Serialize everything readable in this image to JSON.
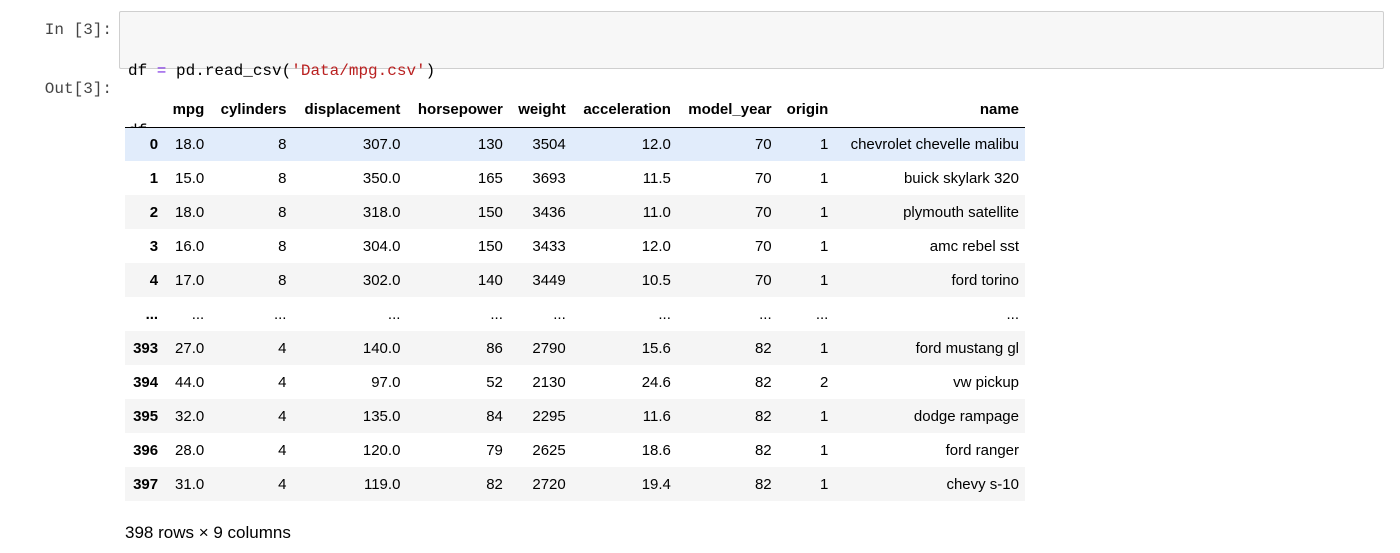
{
  "cell": {
    "in_prompt": "In [3]:",
    "out_prompt": "Out[3]:",
    "code_lines": [
      {
        "a": "df",
        "op": " = ",
        "b": "pd.read_csv(",
        "s": "'Data/mpg.csv'",
        "c": ")"
      },
      {
        "a": "df",
        "op": "",
        "b": "",
        "s": "",
        "c": ""
      }
    ]
  },
  "dataframe": {
    "columns": [
      "",
      "mpg",
      "cylinders",
      "displacement",
      "horsepower",
      "weight",
      "acceleration",
      "model_year",
      "origin",
      "name"
    ],
    "rows": [
      [
        "0",
        "18.0",
        "8",
        "307.0",
        "130",
        "3504",
        "12.0",
        "70",
        "1",
        "chevrolet chevelle malibu"
      ],
      [
        "1",
        "15.0",
        "8",
        "350.0",
        "165",
        "3693",
        "11.5",
        "70",
        "1",
        "buick skylark 320"
      ],
      [
        "2",
        "18.0",
        "8",
        "318.0",
        "150",
        "3436",
        "11.0",
        "70",
        "1",
        "plymouth satellite"
      ],
      [
        "3",
        "16.0",
        "8",
        "304.0",
        "150",
        "3433",
        "12.0",
        "70",
        "1",
        "amc rebel sst"
      ],
      [
        "4",
        "17.0",
        "8",
        "302.0",
        "140",
        "3449",
        "10.5",
        "70",
        "1",
        "ford torino"
      ],
      [
        "...",
        "...",
        "...",
        "...",
        "...",
        "...",
        "...",
        "...",
        "...",
        "..."
      ],
      [
        "393",
        "27.0",
        "4",
        "140.0",
        "86",
        "2790",
        "15.6",
        "82",
        "1",
        "ford mustang gl"
      ],
      [
        "394",
        "44.0",
        "4",
        "97.0",
        "52",
        "2130",
        "24.6",
        "82",
        "2",
        "vw pickup"
      ],
      [
        "395",
        "32.0",
        "4",
        "135.0",
        "84",
        "2295",
        "11.6",
        "82",
        "1",
        "dodge rampage"
      ],
      [
        "396",
        "28.0",
        "4",
        "120.0",
        "79",
        "2625",
        "18.6",
        "82",
        "1",
        "ford ranger"
      ],
      [
        "397",
        "31.0",
        "4",
        "119.0",
        "82",
        "2720",
        "19.4",
        "82",
        "1",
        "chevy s-10"
      ]
    ],
    "highlighted_row_index": 0,
    "summary": "398 rows × 9 columns"
  },
  "colors": {
    "code_background": "#f7f7f7",
    "code_border": "#cfcfcf",
    "stripe": "#f5f5f5",
    "highlight": "#e1ecfb",
    "string": "#ba2121",
    "operator": "#7a2be2"
  }
}
